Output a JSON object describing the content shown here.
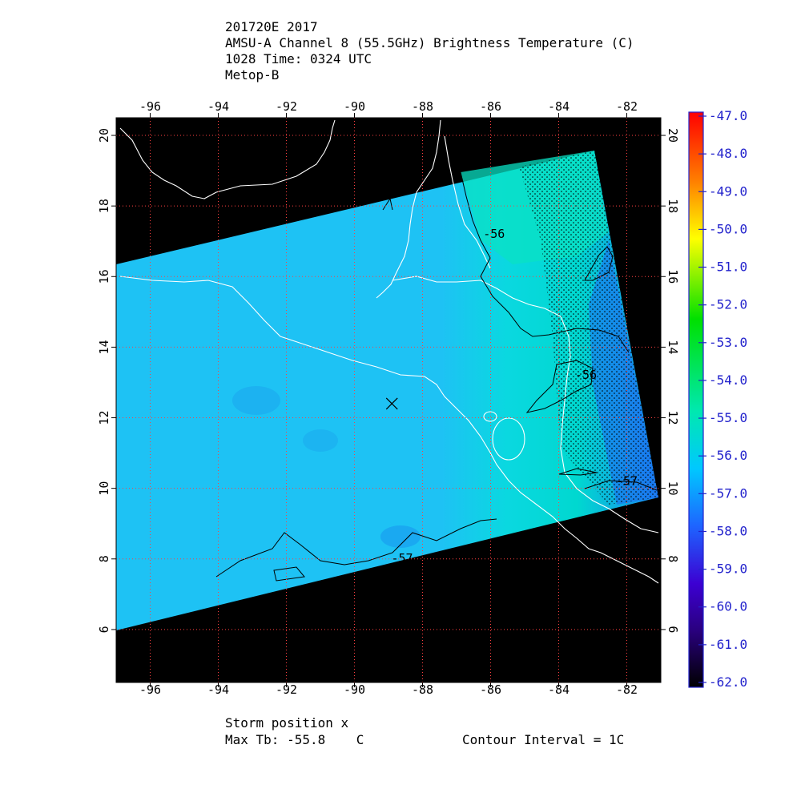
{
  "header": {
    "line1": "201720E 2017",
    "line2": "AMSU-A Channel 8 (55.5GHz) Brightness Temperature (C)",
    "line3": "1028 Time: 0324 UTC",
    "line4": "Metop-B"
  },
  "footer": {
    "storm_position": "Storm position x",
    "max_tb": "Max Tb: -55.8    C",
    "contour_interval": "Contour Interval = 1C"
  },
  "chart_data": {
    "type": "heatmap",
    "x_axis": {
      "range": [
        -97,
        -81
      ],
      "ticks": [
        -96,
        -94,
        -92,
        -90,
        -88,
        -86,
        -84,
        -82
      ],
      "tick_labels": [
        "-96",
        "-94",
        "-92",
        "-90",
        "-88",
        "-86",
        "-84",
        "-82"
      ]
    },
    "y_axis": {
      "range": [
        4.5,
        20.5
      ],
      "ticks": [
        6,
        8,
        10,
        12,
        14,
        16,
        18,
        20
      ],
      "tick_labels": [
        "6",
        "8",
        "10",
        "12",
        "14",
        "16",
        "18",
        "20"
      ]
    },
    "grid": true,
    "colorbar": {
      "range": [
        -62.0,
        -47.0
      ],
      "tick_labels": [
        "-47.0",
        "-48.0",
        "-49.0",
        "-50.0",
        "-51.0",
        "-52.0",
        "-53.0",
        "-54.0",
        "-55.0",
        "-56.0",
        "-57.0",
        "-58.0",
        "-59.0",
        "-60.0",
        "-61.0",
        "-62.0"
      ],
      "colors_top_to_bottom": [
        "#ff0000",
        "#ff7f00",
        "#ffff00",
        "#00e000",
        "#00e8b0",
        "#00c8ff",
        "#1e64ff",
        "#3c00d2",
        "#2a0080",
        "#000000"
      ]
    },
    "contour_labels": [
      {
        "text": "-56",
        "lon": -85.9,
        "lat": 17.1
      },
      {
        "text": "-56",
        "lon": -83.2,
        "lat": 13.1
      },
      {
        "text": "-57",
        "lon": -82.0,
        "lat": 10.1
      },
      {
        "text": "-57",
        "lon": -88.6,
        "lat": 7.9
      }
    ],
    "storm_position": {
      "lon": -88.9,
      "lat": 12.4,
      "marker": "x"
    },
    "max_tb": -55.8,
    "contour_interval": 1,
    "colors": {
      "background": "#000000",
      "field_main": "#1ec2f4",
      "field_warm": "#00e6b4",
      "coastline": "#ffffff",
      "grid": "#ff4040",
      "contour": "#000000"
    }
  }
}
